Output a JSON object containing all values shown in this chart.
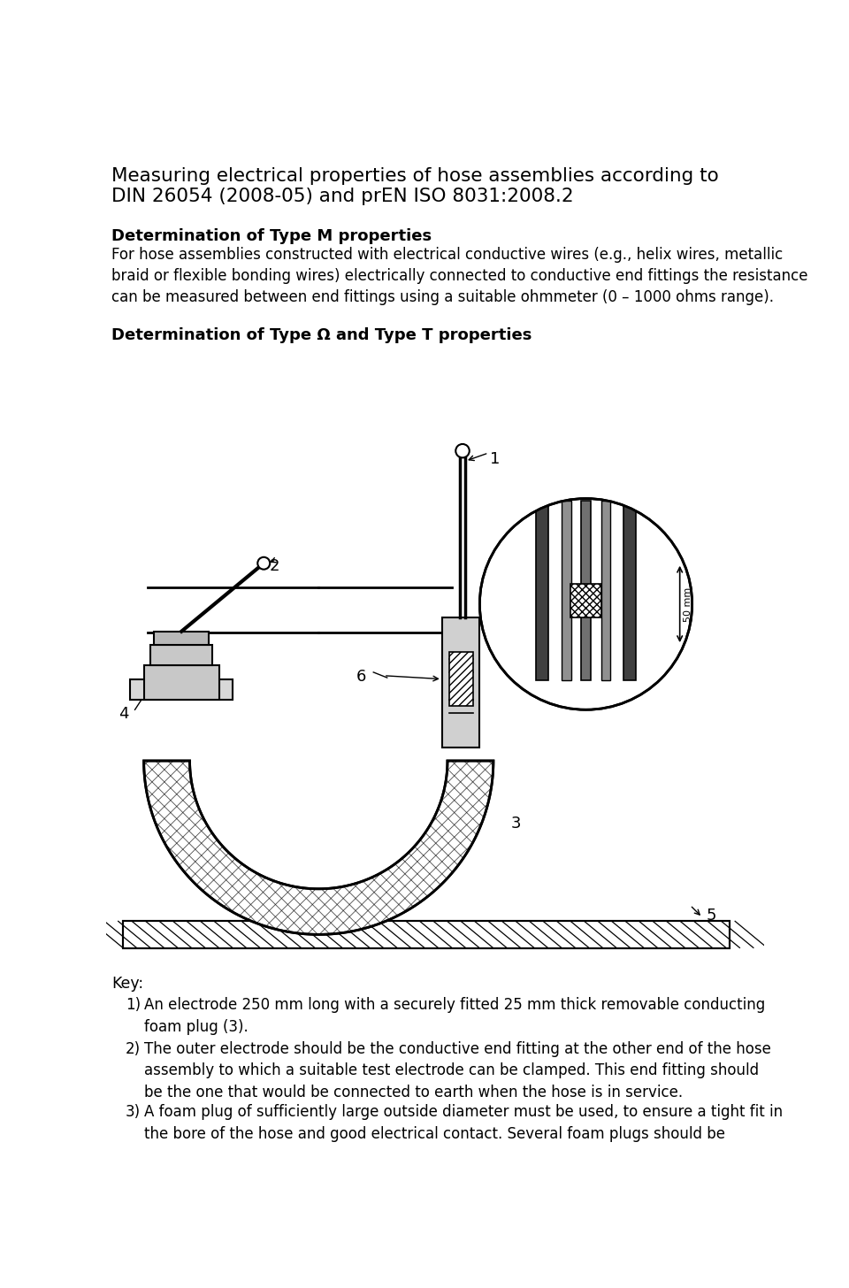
{
  "title_line1": "Measuring electrical properties of hose assemblies according to",
  "title_line2": "DIN 26054 (2008-05) and prEN ISO 8031:2008.2",
  "section1_heading": "Determination of Type M properties",
  "section1_body": "For hose assemblies constructed with electrical conductive wires (e.g., helix wires, metallic\nbraid or flexible bonding wires) electrically connected to conductive end fittings the resistance\ncan be measured between end fittings using a suitable ohmmeter (0 – 1000 ohms range).",
  "section2_heading": "Determination of Type Ω and Type T properties",
  "key_heading": "Key:",
  "key_items": [
    "An electrode 250 mm long with a securely fitted 25 mm thick removable conducting\nfoam plug (3).",
    "The outer electrode should be the conductive end fitting at the other end of the hose\nassembly to which a suitable test electrode can be clamped. This end fitting should\nbe the one that would be connected to earth when the hose is in service.",
    "A foam plug of sufficiently large outside diameter must be used, to ensure a tight fit in\nthe bore of the hose and good electrical contact. Several foam plugs should be"
  ],
  "bg_color": "#ffffff",
  "text_color": "#000000",
  "fig_width": 9.6,
  "fig_height": 14.56,
  "dpi": 100
}
